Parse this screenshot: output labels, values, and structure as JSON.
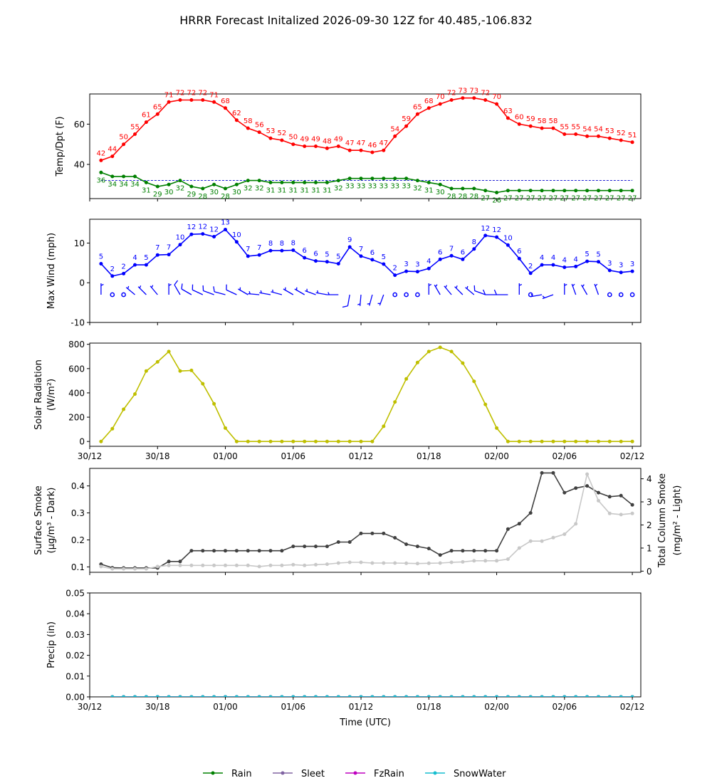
{
  "figure": {
    "title": "HRRR Forecast Initalized 2026-09-30 12Z for 40.485,-106.832",
    "x_axis_label": "Time (UTC)",
    "x_tick_labels": [
      "30/12",
      "30/18",
      "01/00",
      "01/06",
      "01/12",
      "01/18",
      "02/00",
      "02/06",
      "02/12"
    ],
    "x_ticks_hours_from_start": [
      0,
      6,
      12,
      18,
      24,
      30,
      36,
      42,
      48
    ],
    "x_range_hours": [
      0,
      48.75
    ],
    "legend": [
      {
        "name": "Rain",
        "color": "#008000"
      },
      {
        "name": "Sleet",
        "color": "#8064a2"
      },
      {
        "name": "FzRain",
        "color": "#bf00bf"
      },
      {
        "name": "SnowWater",
        "color": "#17becf"
      }
    ],
    "legend_placement": "bottom-center"
  },
  "chart_data": [
    {
      "type": "line",
      "panel": "temperature",
      "ylabel": "Temp/Dpt (F)",
      "ylim": [
        23,
        75
      ],
      "yticks": [
        40,
        60
      ],
      "x_hours_start": 1,
      "x_hours_step": 1,
      "series": [
        {
          "color": "#ff0000",
          "values": [
            42,
            44,
            50,
            55,
            61,
            65,
            71,
            72,
            72,
            72,
            71,
            68,
            62,
            58,
            56,
            53,
            52,
            50,
            49,
            49,
            48,
            49,
            47,
            47,
            46,
            47,
            54,
            59,
            65,
            68,
            70,
            72,
            73,
            73,
            72,
            70,
            63,
            60,
            59,
            58,
            58,
            55,
            55,
            54,
            54,
            53,
            52,
            51
          ]
        },
        {
          "color": "#008000",
          "values": [
            36,
            34,
            34,
            34,
            31,
            29,
            30,
            32,
            29,
            28,
            30,
            28,
            30,
            32,
            32,
            31,
            31,
            31,
            31,
            31,
            31,
            32,
            33,
            33,
            33,
            33,
            33,
            33,
            32,
            31,
            30,
            28,
            28,
            28,
            27,
            26,
            27,
            27,
            27,
            27,
            27,
            27,
            27,
            27,
            27,
            27,
            27,
            27
          ]
        }
      ],
      "reference_line": {
        "value": 32,
        "color": "#0000cc",
        "style": "dashed"
      }
    },
    {
      "type": "line",
      "panel": "wind",
      "ylabel": "Max Wind (mph)",
      "ylim": [
        -10,
        16
      ],
      "yticks": [
        -10,
        0,
        10
      ],
      "x_hours_start": 1,
      "x_hours_step": 1,
      "series": [
        {
          "color": "#0000ff",
          "values": [
            5,
            2,
            2,
            4,
            5,
            7,
            7,
            10,
            12,
            12,
            12,
            13,
            10,
            7,
            7,
            8,
            8,
            8,
            6,
            6,
            5,
            5,
            9,
            7,
            6,
            5,
            2,
            3,
            3,
            4,
            6,
            7,
            6,
            8,
            12,
            12,
            10,
            6,
            2,
            4,
            4,
            4,
            4,
            5,
            5,
            3,
            3,
            3
          ],
          "plotted_values": [
            4.8,
            1.7,
            2.3,
            4.5,
            4.5,
            7.0,
            7.1,
            9.6,
            12.2,
            12.3,
            11.6,
            13.4,
            10.3,
            6.7,
            7.0,
            8.1,
            8.1,
            8.2,
            6.3,
            5.5,
            5.3,
            4.8,
            9.0,
            6.7,
            5.8,
            4.7,
            1.9,
            2.9,
            2.8,
            3.6,
            5.9,
            6.8,
            5.9,
            8.5,
            11.9,
            11.5,
            9.5,
            6.1,
            2.4,
            4.5,
            4.5,
            3.9,
            4.1,
            5.4,
            5.3,
            3.1,
            2.6,
            2.9
          ]
        }
      ],
      "wind_barbs": {
        "level": -3,
        "color": "#0000ff",
        "direction_from_deg": [
          0,
          0,
          0,
          310,
          315,
          320,
          0,
          330,
          300,
          295,
          290,
          285,
          295,
          300,
          275,
          280,
          285,
          300,
          300,
          290,
          280,
          270,
          190,
          185,
          195,
          200,
          0,
          0,
          0,
          0,
          330,
          320,
          315,
          310,
          290,
          270,
          270,
          0,
          0,
          260,
          250,
          0,
          340,
          330,
          340,
          0,
          0,
          0
        ]
      }
    },
    {
      "type": "line",
      "panel": "solar",
      "ylabel": "Solar Radiation",
      "ylabel_units": "(W/m²)",
      "ylim": [
        -40,
        810
      ],
      "yticks": [
        0,
        200,
        400,
        600,
        800
      ],
      "x_hours_start": 1,
      "x_hours_step": 1,
      "series": [
        {
          "color": "#bfbf00",
          "values": [
            0,
            105,
            265,
            390,
            580,
            655,
            740,
            580,
            585,
            475,
            310,
            110,
            0,
            0,
            0,
            0,
            0,
            0,
            0,
            0,
            0,
            0,
            0,
            0,
            0,
            125,
            325,
            515,
            650,
            740,
            775,
            740,
            645,
            495,
            305,
            110,
            0,
            0,
            0,
            0,
            0,
            0,
            0,
            0,
            0,
            0,
            0,
            0
          ]
        }
      ]
    },
    {
      "type": "line",
      "panel": "smoke",
      "ylabel": "Surface Smoke",
      "ylabel_units": "(μg/m³ - Dark)",
      "ylim": [
        0.08,
        0.465
      ],
      "yticks": [
        0.1,
        0.2,
        0.3,
        0.4
      ],
      "ytick_labels": [
        "0.1",
        "0.2",
        "0.3",
        "0.4"
      ],
      "y2label": "Total Column Smoke",
      "y2label_units": "(mg/m² - Light)",
      "y2lim": [
        -0.05,
        4.45
      ],
      "y2ticks": [
        0,
        1,
        2,
        3,
        4
      ],
      "x_hours_start": 1,
      "x_hours_step": 1,
      "series": [
        {
          "color": "#404040",
          "axis": "left",
          "values": [
            0.11,
            0.097,
            0.096,
            0.096,
            0.096,
            0.096,
            0.12,
            0.12,
            0.16,
            0.16,
            0.16,
            0.16,
            0.16,
            0.16,
            0.16,
            0.16,
            0.16,
            0.176,
            0.176,
            0.176,
            0.176,
            0.192,
            0.192,
            0.224,
            0.224,
            0.224,
            0.208,
            0.184,
            0.176,
            0.168,
            0.144,
            0.16,
            0.16,
            0.16,
            0.16,
            0.16,
            0.24,
            0.26,
            0.3,
            0.448,
            0.448,
            0.375,
            0.392,
            0.4,
            0.375,
            0.36,
            0.364,
            0.33
          ]
        },
        {
          "color": "#c8c8c8",
          "axis": "right",
          "values": [
            0.2,
            0.1,
            0.1,
            0.1,
            0.1,
            0.2,
            0.25,
            0.25,
            0.25,
            0.25,
            0.25,
            0.25,
            0.25,
            0.25,
            0.2,
            0.25,
            0.25,
            0.28,
            0.25,
            0.28,
            0.3,
            0.35,
            0.38,
            0.38,
            0.35,
            0.35,
            0.35,
            0.34,
            0.33,
            0.34,
            0.35,
            0.38,
            0.4,
            0.45,
            0.45,
            0.45,
            0.52,
            1.0,
            1.3,
            1.3,
            1.45,
            1.6,
            2.05,
            4.2,
            3.05,
            2.5,
            2.45,
            2.5
          ]
        }
      ]
    },
    {
      "type": "line",
      "panel": "precip",
      "ylabel": "Precip (in)",
      "ylim": [
        0,
        0.05
      ],
      "yticks": [
        0.0,
        0.01,
        0.02,
        0.03,
        0.04,
        0.05
      ],
      "ytick_labels": [
        "0.00",
        "0.01",
        "0.02",
        "0.03",
        "0.04",
        "0.05"
      ],
      "x_hours_start": 2,
      "x_hours_step": 1,
      "series": [
        {
          "name": "Rain",
          "color": "#008000",
          "values": [
            0,
            0,
            0,
            0,
            0,
            0,
            0,
            0,
            0,
            0,
            0,
            0,
            0,
            0,
            0,
            0,
            0,
            0,
            0,
            0,
            0,
            0,
            0,
            0,
            0,
            0,
            0,
            0,
            0,
            0,
            0,
            0,
            0,
            0,
            0,
            0,
            0,
            0,
            0,
            0,
            0,
            0,
            0,
            0,
            0,
            0,
            0
          ]
        },
        {
          "name": "Sleet",
          "color": "#8064a2",
          "values": [
            0,
            0,
            0,
            0,
            0,
            0,
            0,
            0,
            0,
            0,
            0,
            0,
            0,
            0,
            0,
            0,
            0,
            0,
            0,
            0,
            0,
            0,
            0,
            0,
            0,
            0,
            0,
            0,
            0,
            0,
            0,
            0,
            0,
            0,
            0,
            0,
            0,
            0,
            0,
            0,
            0,
            0,
            0,
            0,
            0,
            0,
            0
          ]
        },
        {
          "name": "FzRain",
          "color": "#bf00bf",
          "values": [
            0,
            0,
            0,
            0,
            0,
            0,
            0,
            0,
            0,
            0,
            0,
            0,
            0,
            0,
            0,
            0,
            0,
            0,
            0,
            0,
            0,
            0,
            0,
            0,
            0,
            0,
            0,
            0,
            0,
            0,
            0,
            0,
            0,
            0,
            0,
            0,
            0,
            0,
            0,
            0,
            0,
            0,
            0,
            0,
            0,
            0,
            0
          ]
        },
        {
          "name": "SnowWater",
          "color": "#17becf",
          "values": [
            0,
            0,
            0,
            0,
            0,
            0,
            0,
            0,
            0,
            0,
            0,
            0,
            0,
            0,
            0,
            0,
            0,
            0,
            0,
            0,
            0,
            0,
            0,
            0,
            0,
            0,
            0,
            0,
            0,
            0,
            0,
            0,
            0,
            0,
            0,
            0,
            0,
            0,
            0,
            0,
            0,
            0,
            0,
            0,
            0,
            0,
            0
          ]
        }
      ]
    }
  ]
}
